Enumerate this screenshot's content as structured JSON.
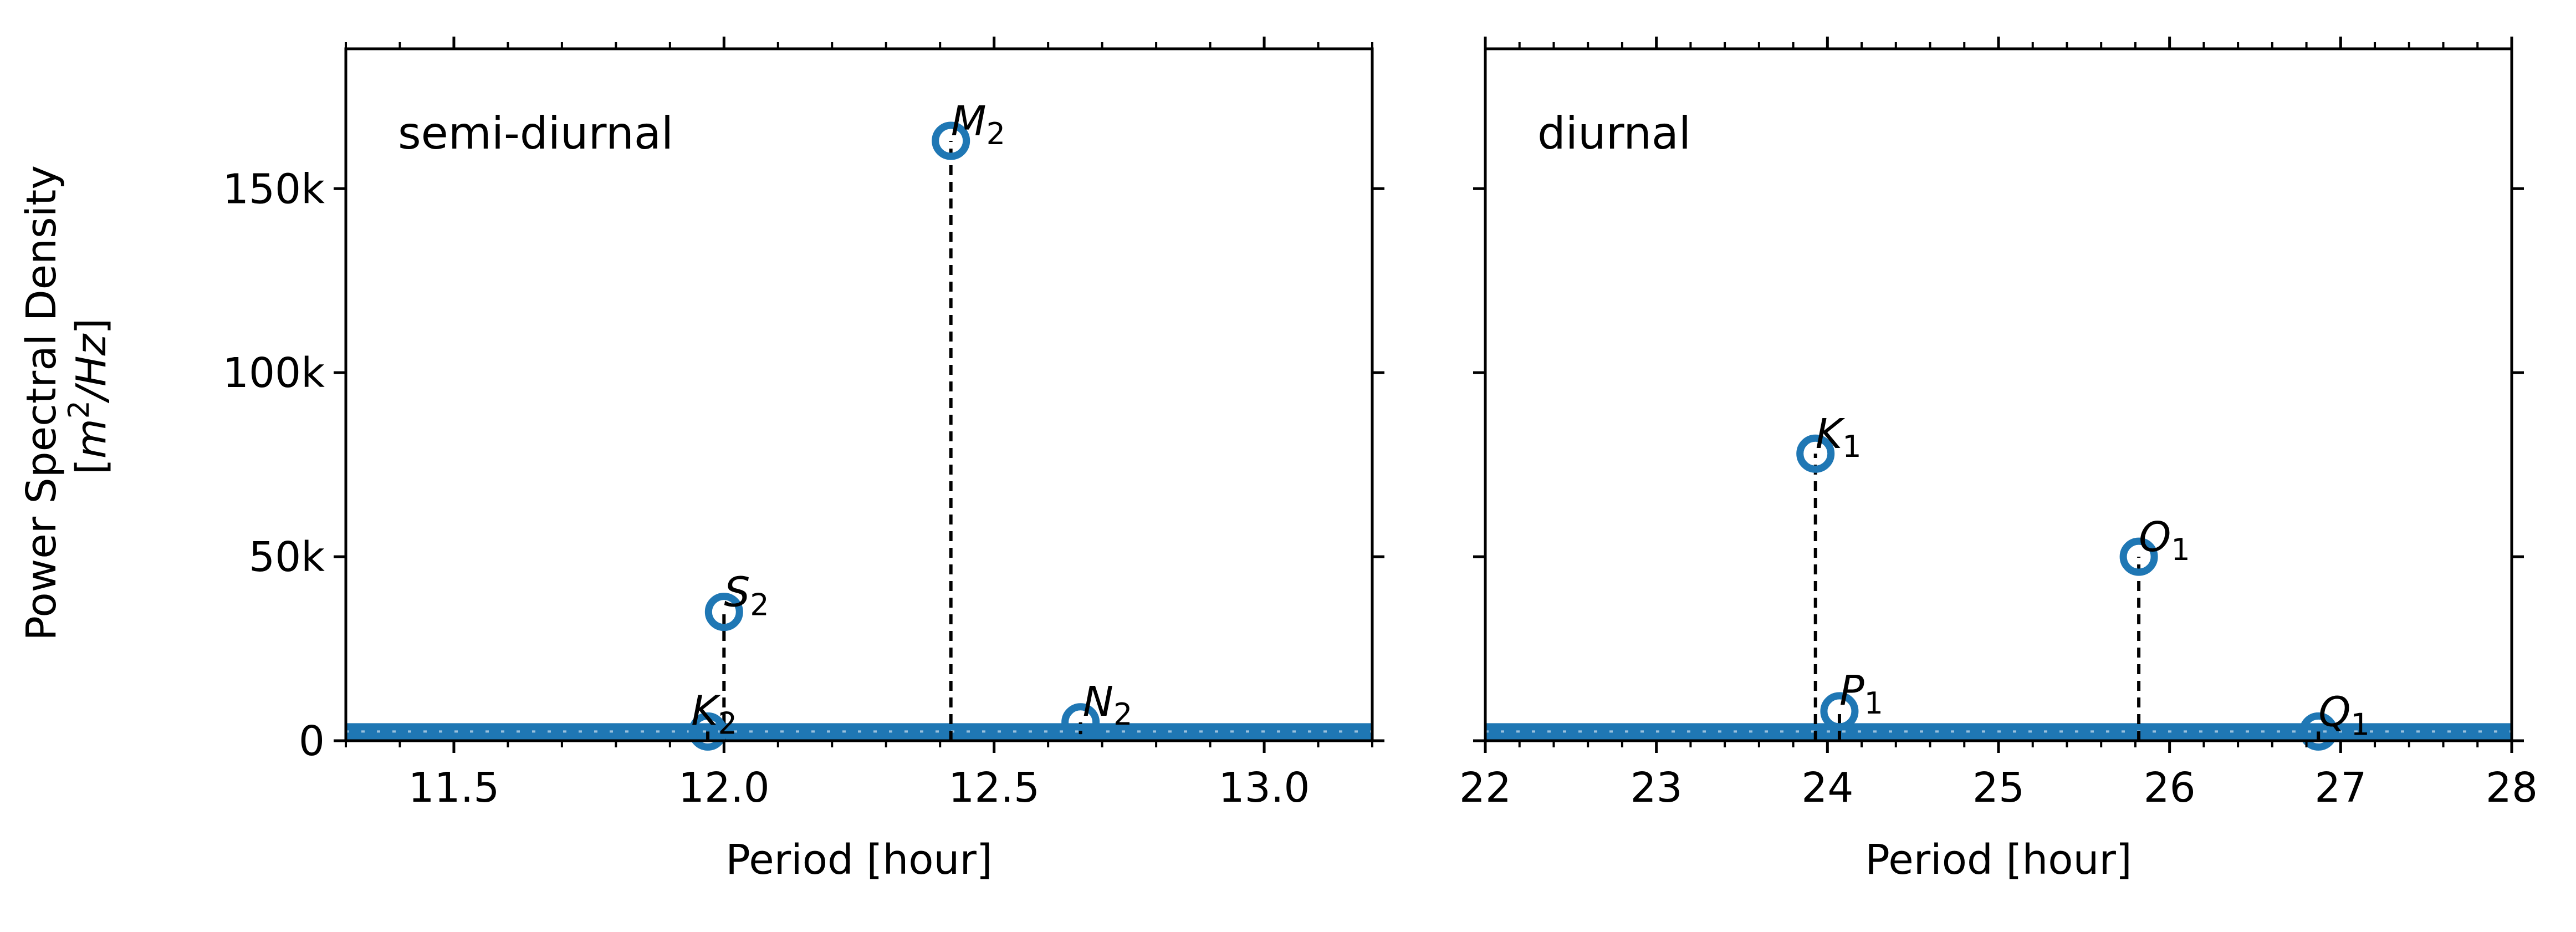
{
  "figure": {
    "y_label": {
      "line1": "Power Spectral Density",
      "line2_open": "[",
      "line2_italic": "m",
      "line2_sup": "2",
      "line2_rest_italic": "/Hz",
      "line2_close": "]"
    },
    "colors": {
      "marker": "#1f77b4",
      "axis": "#000000",
      "stem": "#000000"
    }
  },
  "chart_data": [
    {
      "type": "scatter",
      "panel": "left",
      "title": "",
      "panel_label": "semi-diurnal",
      "xlabel": "Period [hour]",
      "ylabel": "Power Spectral Density [m²/Hz]",
      "xlim": [
        11.3,
        13.2
      ],
      "ylim": [
        0,
        188000
      ],
      "x_ticks": [
        11.5,
        12.0,
        12.5,
        13.0
      ],
      "x_tick_labels": [
        "11.5",
        "12.0",
        "12.5",
        "13.0"
      ],
      "y_ticks": [
        0,
        50000,
        100000,
        150000
      ],
      "y_tick_labels": [
        "0",
        "50k",
        "100k",
        "150k"
      ],
      "grid": false,
      "baseline": {
        "x_start": 11.3,
        "x_end": 13.2,
        "y": 2500
      },
      "peaks": [
        {
          "label": "M",
          "sub": "2",
          "x": 12.42,
          "y": 163000
        },
        {
          "label": "S",
          "sub": "2",
          "x": 12.0,
          "y": 35000
        },
        {
          "label": "N",
          "sub": "2",
          "x": 12.66,
          "y": 5000
        },
        {
          "label": "K",
          "sub": "2",
          "x": 11.97,
          "y": 2500
        }
      ]
    },
    {
      "type": "scatter",
      "panel": "right",
      "title": "",
      "panel_label": "diurnal",
      "xlabel": "Period [hour]",
      "ylabel": "",
      "xlim": [
        22,
        28
      ],
      "ylim": [
        0,
        188000
      ],
      "x_ticks": [
        22,
        23,
        24,
        25,
        26,
        27,
        28
      ],
      "x_tick_labels": [
        "22",
        "23",
        "24",
        "25",
        "26",
        "27",
        "28"
      ],
      "y_ticks": [
        0,
        50000,
        100000,
        150000
      ],
      "y_tick_labels": [
        "",
        "",
        "",
        ""
      ],
      "grid": false,
      "baseline": {
        "x_start": 22,
        "x_end": 28,
        "y": 2500
      },
      "peaks": [
        {
          "label": "K",
          "sub": "1",
          "x": 23.93,
          "y": 78000
        },
        {
          "label": "O",
          "sub": "1",
          "x": 25.82,
          "y": 50000
        },
        {
          "label": "P",
          "sub": "1",
          "x": 24.07,
          "y": 8000
        },
        {
          "label": "Q",
          "sub": "1",
          "x": 26.87,
          "y": 2500
        }
      ]
    }
  ]
}
